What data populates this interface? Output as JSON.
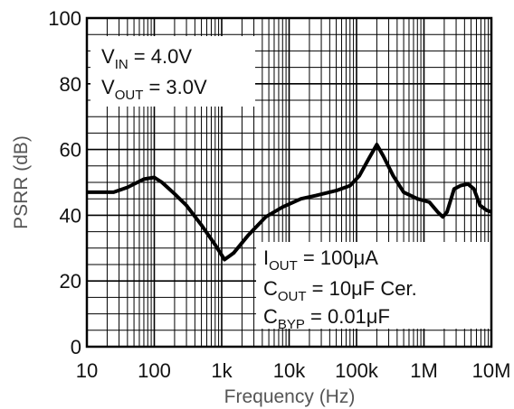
{
  "chart_data": {
    "type": "line",
    "xscale": "log",
    "xlabel": "Frequency (Hz)",
    "ylabel": "PSRR (dB)",
    "xlim": [
      10,
      10000000
    ],
    "ylim": [
      0,
      100
    ],
    "grid": true,
    "x_ticks": [
      {
        "value": 10,
        "label": "10"
      },
      {
        "value": 100,
        "label": "100"
      },
      {
        "value": 1000,
        "label": "1k"
      },
      {
        "value": 10000,
        "label": "10k"
      },
      {
        "value": 100000,
        "label": "100k"
      },
      {
        "value": 1000000,
        "label": "1M"
      },
      {
        "value": 10000000,
        "label": "10M"
      }
    ],
    "y_ticks": [
      {
        "value": 0,
        "label": "0"
      },
      {
        "value": 20,
        "label": "20"
      },
      {
        "value": 40,
        "label": "40"
      },
      {
        "value": 60,
        "label": "60"
      },
      {
        "value": 80,
        "label": "80"
      },
      {
        "value": 100,
        "label": "100"
      }
    ],
    "series": [
      {
        "color": "#000000",
        "points": [
          [
            10,
            47
          ],
          [
            25,
            47
          ],
          [
            40,
            48.5
          ],
          [
            70,
            51
          ],
          [
            100,
            51.5
          ],
          [
            130,
            50
          ],
          [
            200,
            46.5
          ],
          [
            300,
            43
          ],
          [
            500,
            37
          ],
          [
            800,
            31
          ],
          [
            1100,
            26.5
          ],
          [
            1500,
            28.5
          ],
          [
            2500,
            34
          ],
          [
            4500,
            39.5
          ],
          [
            8000,
            42.5
          ],
          [
            15000,
            45
          ],
          [
            25000,
            46
          ],
          [
            50000,
            47.5
          ],
          [
            80000,
            49
          ],
          [
            110000,
            52
          ],
          [
            150000,
            57
          ],
          [
            200000,
            61.5
          ],
          [
            250000,
            58
          ],
          [
            350000,
            52
          ],
          [
            500000,
            47
          ],
          [
            800000,
            45
          ],
          [
            1200000,
            44
          ],
          [
            1600000,
            41
          ],
          [
            1900000,
            39.5
          ],
          [
            2200000,
            41
          ],
          [
            2800000,
            48
          ],
          [
            3500000,
            49
          ],
          [
            4500000,
            49.5
          ],
          [
            5500000,
            48
          ],
          [
            6800000,
            43
          ],
          [
            8500000,
            41.5
          ],
          [
            10000000,
            41
          ]
        ]
      }
    ],
    "annotations": {
      "top_left": {
        "line1": {
          "sym": "V",
          "sub": "IN",
          "rest": " = 4.0V"
        },
        "line2": {
          "sym": "V",
          "sub": "OUT",
          "rest": " = 3.0V"
        }
      },
      "bottom_right": {
        "line1": {
          "sym": "I",
          "sub": "OUT",
          "rest": " = 100μA"
        },
        "line2": {
          "sym": "C",
          "sub": "OUT",
          "rest": " = 10μF Cer."
        },
        "line3": {
          "sym": "C",
          "sub": "BYP",
          "rest": " = 0.01μF"
        }
      }
    }
  }
}
